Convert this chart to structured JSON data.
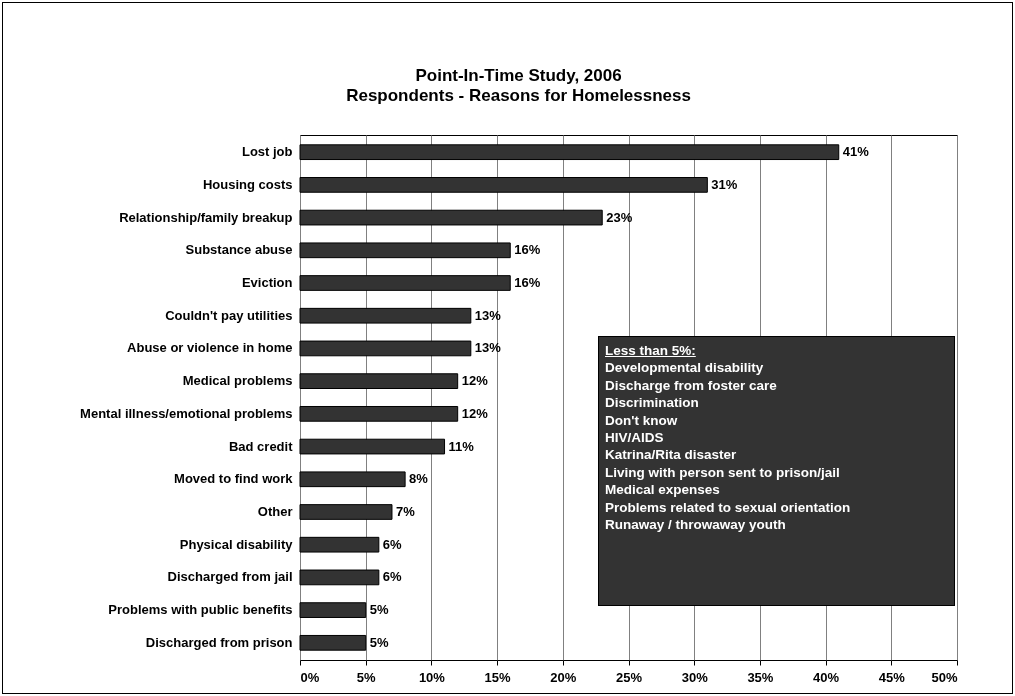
{
  "chart_data": {
    "type": "bar",
    "orientation": "horizontal",
    "title": "Point-In-Time Study, 2006",
    "subtitle": "Respondents - Reasons for Homelessness",
    "categories": [
      "Lost job",
      "Housing costs",
      "Relationship/family breakup",
      "Substance abuse",
      "Eviction",
      "Couldn't pay utilities",
      "Abuse or violence in home",
      "Medical problems",
      "Mental illness/emotional problems",
      "Bad credit",
      "Moved to find work",
      "Other",
      "Physical disability",
      "Discharged from jail",
      "Problems with public benefits",
      "Discharged from prison"
    ],
    "values": [
      41,
      31,
      23,
      16,
      16,
      13,
      13,
      12,
      12,
      11,
      8,
      7,
      6,
      6,
      5,
      5
    ],
    "value_labels": [
      "41%",
      "31%",
      "23%",
      "16%",
      "16%",
      "13%",
      "13%",
      "12%",
      "12%",
      "11%",
      "8%",
      "7%",
      "6%",
      "6%",
      "5%",
      "5%"
    ],
    "color": "#333333",
    "xlim": [
      0,
      50
    ],
    "xticks": [
      {
        "value": 0,
        "label": "0%"
      },
      {
        "value": 5,
        "label": "5%"
      },
      {
        "value": 10,
        "label": "10%"
      },
      {
        "value": 15,
        "label": "15%"
      },
      {
        "value": 20,
        "label": "20%"
      },
      {
        "value": 25,
        "label": "25%"
      },
      {
        "value": 30,
        "label": "30%"
      },
      {
        "value": 35,
        "label": "35%"
      },
      {
        "value": 40,
        "label": "40%"
      },
      {
        "value": 45,
        "label": "45%"
      },
      {
        "value": 50,
        "label": "50%"
      }
    ],
    "grid": "x",
    "annotations": [
      "Less than 5%:",
      "Developmental disability",
      "Discharge from foster care",
      "Discrimination",
      "Don't know",
      "HIV/AIDS",
      "Katrina/Rita disaster",
      "Living with person sent to prison/jail",
      "Medical expenses",
      "Problems related to sexual orientation",
      "Runaway / throwaway youth"
    ]
  }
}
